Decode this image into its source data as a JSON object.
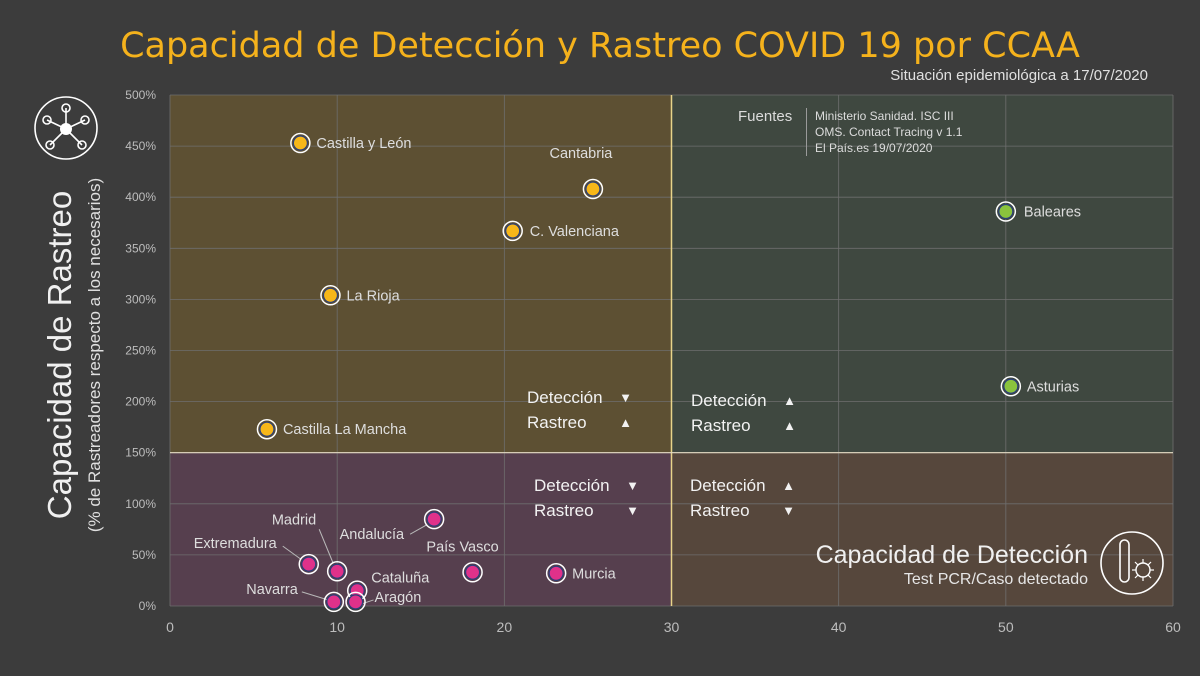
{
  "title": "Capacidad de Detección y Rastreo COVID 19 por CCAA",
  "subtitle": "Situación epidemiológica a 17/07/2020",
  "sources": {
    "label": "Fuentes",
    "lines": [
      "Ministerio Sanidad. ISC III",
      "OMS. Contact Tracing v 1.1",
      "El País.es  19/07/2020"
    ]
  },
  "y_axis": {
    "title": "Capacidad de Rastreo",
    "subtitle": "(% de Rastreadores  respecto a los necesarios)"
  },
  "x_axis": {
    "title": "Capacidad de Detección",
    "subtitle": "Test PCR/Caso detectado"
  },
  "quadrants": [
    {
      "name": "top-left",
      "line1": "Detección",
      "arrow1": "▼",
      "line2": "Rastreo",
      "arrow2": "▲"
    },
    {
      "name": "top-right",
      "line1": "Detección",
      "arrow1": "▲",
      "line2": "Rastreo",
      "arrow2": "▲"
    },
    {
      "name": "bottom-left",
      "line1": "Detección",
      "arrow1": "▼",
      "line2": "Rastreo",
      "arrow2": "▼"
    },
    {
      "name": "bottom-right",
      "line1": "Detección",
      "arrow1": "▲",
      "line2": "Rastreo",
      "arrow2": "▼"
    }
  ],
  "colors": {
    "background": "#3c3c3c",
    "title": "#f5b21c",
    "top_left_fill": "#5d5033",
    "top_right_fill": "#3f4840",
    "bottom_left_fill": "#563f4e",
    "bottom_right_fill": "#56473c",
    "yellow_point": "#f7b719",
    "green_point": "#8ac33d",
    "pink_point": "#e0318a",
    "grid": "#6e6e6e"
  },
  "icon_names": [
    "network-icon",
    "test-tube-virus-icon"
  ],
  "chart_data": {
    "type": "scatter",
    "xlim": [
      0,
      60
    ],
    "ylim": [
      0,
      500
    ],
    "x_ticks": [
      "0",
      "10",
      "20",
      "30",
      "40",
      "50",
      "60"
    ],
    "y_ticks": [
      "0%",
      "50%",
      "100%",
      "150%",
      "200%",
      "250%",
      "300%",
      "350%",
      "400%",
      "450%",
      "500%"
    ],
    "x_threshold": 30,
    "y_threshold": 150,
    "grid": true,
    "points": [
      {
        "label": "Castilla y León",
        "x": 7.8,
        "y": 453,
        "group": "yellow"
      },
      {
        "label": "Cantabria",
        "x": 25.3,
        "y": 408,
        "group": "yellow"
      },
      {
        "label": "C. Valenciana",
        "x": 20.5,
        "y": 367,
        "group": "yellow"
      },
      {
        "label": "La Rioja",
        "x": 9.6,
        "y": 304,
        "group": "yellow"
      },
      {
        "label": "Castilla La Mancha",
        "x": 5.8,
        "y": 173,
        "group": "yellow"
      },
      {
        "label": "Baleares",
        "x": 50.0,
        "y": 386,
        "group": "green"
      },
      {
        "label": "Asturias",
        "x": 50.3,
        "y": 215,
        "group": "green"
      },
      {
        "label": "Andalucía",
        "x": 15.8,
        "y": 85,
        "group": "pink"
      },
      {
        "label": "Madrid",
        "x": 10.0,
        "y": 34,
        "group": "pink"
      },
      {
        "label": "Extremadura",
        "x": 8.3,
        "y": 41,
        "group": "pink"
      },
      {
        "label": "País Vasco",
        "x": 18.1,
        "y": 33,
        "group": "pink"
      },
      {
        "label": "Murcia",
        "x": 23.1,
        "y": 32,
        "group": "pink"
      },
      {
        "label": "Cataluña",
        "x": 11.2,
        "y": 15,
        "group": "pink"
      },
      {
        "label": "Navarra",
        "x": 9.8,
        "y": 4,
        "group": "pink"
      },
      {
        "label": "Aragón",
        "x": 11.1,
        "y": 4,
        "group": "pink"
      }
    ]
  }
}
